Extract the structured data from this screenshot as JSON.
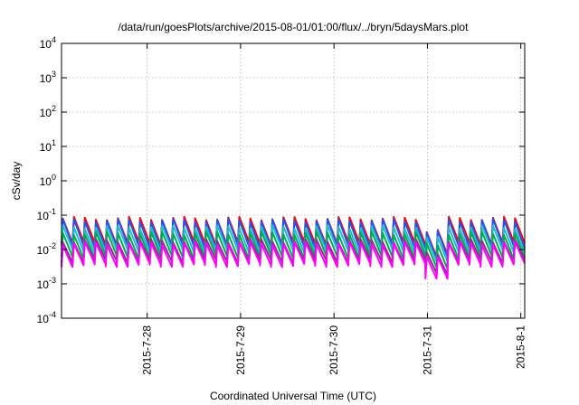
{
  "chart_data": {
    "type": "line",
    "title": "/data/run/goesPlots/archive/2015-08-01/01:00/flux/../bryn/5daysMars.plot",
    "xlabel": "Coordinated Universal Time (UTC)",
    "ylabel": "cSv/day",
    "y_scale": "log",
    "ylim": [
      0.0001,
      10000
    ],
    "xlim": [
      "2015-07-27 02:00",
      "2015-08-01 01:00"
    ],
    "grid": true,
    "y_ticks": [
      {
        "value": 0.0001,
        "base": "10",
        "exp": "-4"
      },
      {
        "value": 0.001,
        "base": "10",
        "exp": "-3"
      },
      {
        "value": 0.01,
        "base": "10",
        "exp": "-2"
      },
      {
        "value": 0.1,
        "base": "10",
        "exp": "-1"
      },
      {
        "value": 1,
        "base": "10",
        "exp": "0"
      },
      {
        "value": 10,
        "base": "10",
        "exp": "1"
      },
      {
        "value": 100,
        "base": "10",
        "exp": "2"
      },
      {
        "value": 1000,
        "base": "10",
        "exp": "3"
      },
      {
        "value": 10000,
        "base": "10",
        "exp": "4"
      }
    ],
    "x_ticks": [
      {
        "value": "2015-07-28 00:00",
        "label": "2015-7-28"
      },
      {
        "value": "2015-07-29 00:00",
        "label": "2015-7-29"
      },
      {
        "value": "2015-07-30 00:00",
        "label": "2015-7-30"
      },
      {
        "value": "2015-07-31 00:00",
        "label": "2015-7-31"
      },
      {
        "value": "2015-08-01 00:00",
        "label": "2015-8-1"
      }
    ],
    "series": [
      {
        "color": "#ff0000",
        "top": 0.08,
        "bottom": 0.015
      },
      {
        "color": "#2255ee",
        "top": 0.07,
        "bottom": 0.012
      },
      {
        "color": "#22bbcc",
        "top": 0.045,
        "bottom": 0.009
      },
      {
        "color": "#00aa55",
        "top": 0.03,
        "bottom": 0.006
      },
      {
        "color": "#883388",
        "top": 0.018,
        "bottom": 0.0045
      },
      {
        "color": "#ff00ff",
        "top": 0.015,
        "bottom": 0.0035
      }
    ]
  }
}
